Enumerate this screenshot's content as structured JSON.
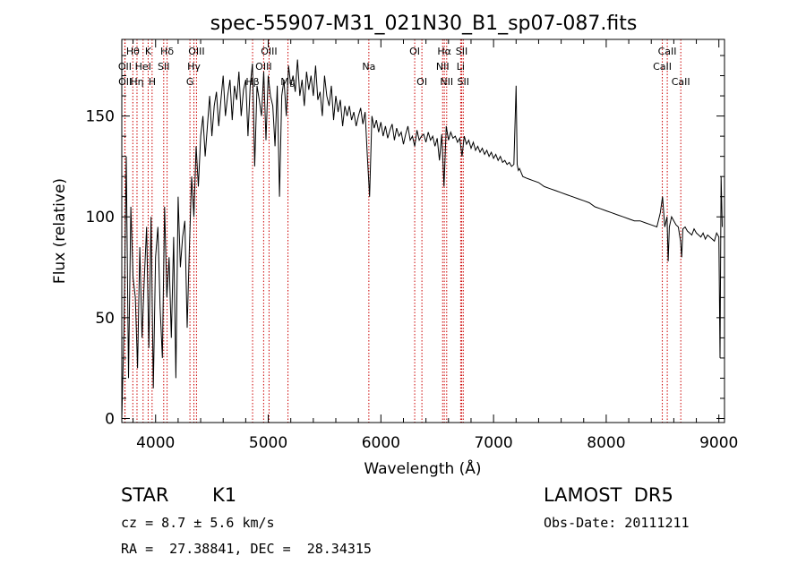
{
  "chart_data": {
    "type": "line",
    "title": "spec-55907-M31_021N30_B1_sp07-087.fits",
    "xlabel": "Wavelength (Å)",
    "ylabel": "Flux (relative)",
    "xlim": [
      3700,
      9050
    ],
    "ylim": [
      -2,
      188
    ],
    "x_ticks": [
      4000,
      5000,
      6000,
      7000,
      8000,
      9000
    ],
    "y_ticks": [
      0,
      50,
      100,
      150
    ],
    "x_tick_labels": [
      "4000",
      "5000",
      "6000",
      "7000",
      "8000",
      "9000"
    ],
    "y_tick_labels": [
      "0",
      "50",
      "100",
      "150"
    ],
    "line_color": "#000000",
    "marker_color": "#cc0000",
    "series": [
      {
        "x": [
          3700,
          3720,
          3740,
          3760,
          3780,
          3800,
          3820,
          3840,
          3860,
          3880,
          3900,
          3920,
          3940,
          3960,
          3980,
          4000,
          4020,
          4040,
          4060,
          4080,
          4100,
          4120,
          4140,
          4160,
          4180,
          4200,
          4220,
          4240,
          4260,
          4280,
          4300,
          4320,
          4340,
          4360,
          4380,
          4400,
          4420,
          4440,
          4460,
          4480,
          4500,
          4520,
          4540,
          4560,
          4580,
          4600,
          4620,
          4640,
          4660,
          4680,
          4700,
          4720,
          4740,
          4760,
          4780,
          4800,
          4820,
          4840,
          4860,
          4880,
          4900,
          4920,
          4940,
          4960,
          4980,
          5000,
          5020,
          5040,
          5060,
          5080,
          5100,
          5120,
          5140,
          5160,
          5180,
          5200,
          5220,
          5240,
          5260,
          5280,
          5300,
          5320,
          5340,
          5360,
          5380,
          5400,
          5420,
          5440,
          5460,
          5480,
          5500,
          5520,
          5540,
          5560,
          5580,
          5600,
          5620,
          5640,
          5660,
          5680,
          5700,
          5720,
          5740,
          5760,
          5780,
          5800,
          5820,
          5840,
          5860,
          5880,
          5900,
          5920,
          5940,
          5960,
          5980,
          6000,
          6020,
          6040,
          6060,
          6080,
          6100,
          6120,
          6140,
          6160,
          6180,
          6200,
          6220,
          6240,
          6260,
          6280,
          6300,
          6320,
          6340,
          6360,
          6380,
          6400,
          6420,
          6440,
          6460,
          6480,
          6500,
          6520,
          6540,
          6560,
          6580,
          6600,
          6620,
          6640,
          6660,
          6680,
          6700,
          6720,
          6740,
          6760,
          6780,
          6800,
          6820,
          6840,
          6860,
          6880,
          6900,
          6920,
          6940,
          6960,
          6980,
          7000,
          7020,
          7040,
          7060,
          7080,
          7100,
          7120,
          7140,
          7160,
          7180,
          7200,
          7210,
          7220,
          7230,
          7260,
          7300,
          7350,
          7400,
          7450,
          7500,
          7550,
          7600,
          7650,
          7700,
          7750,
          7800,
          7850,
          7900,
          7950,
          8000,
          8050,
          8100,
          8150,
          8200,
          8250,
          8300,
          8350,
          8400,
          8450,
          8480,
          8500,
          8520,
          8540,
          8550,
          8560,
          8580,
          8600,
          8620,
          8640,
          8660,
          8670,
          8680,
          8700,
          8720,
          8740,
          8760,
          8780,
          8800,
          8820,
          8840,
          8860,
          8880,
          8900,
          8920,
          8940,
          8960,
          8980,
          9000,
          9010,
          9020,
          9030
        ],
        "y": [
          0,
          45,
          130,
          20,
          105,
          70,
          60,
          25,
          85,
          40,
          70,
          95,
          35,
          100,
          15,
          80,
          95,
          55,
          30,
          105,
          60,
          80,
          40,
          90,
          20,
          110,
          75,
          90,
          98,
          45,
          85,
          120,
          100,
          135,
          115,
          140,
          150,
          130,
          145,
          160,
          140,
          155,
          162,
          145,
          158,
          170,
          150,
          160,
          168,
          148,
          165,
          158,
          172,
          150,
          163,
          168,
          140,
          165,
          176,
          125,
          165,
          158,
          150,
          172,
          138,
          170,
          160,
          155,
          135,
          165,
          110,
          160,
          168,
          150,
          175,
          165,
          170,
          162,
          178,
          160,
          168,
          155,
          172,
          163,
          170,
          160,
          175,
          158,
          162,
          150,
          170,
          160,
          155,
          165,
          148,
          160,
          152,
          158,
          145,
          155,
          150,
          155,
          148,
          152,
          145,
          150,
          154,
          146,
          152,
          130,
          110,
          150,
          144,
          148,
          142,
          147,
          140,
          145,
          139,
          143,
          146,
          138,
          144,
          140,
          142,
          136,
          141,
          145,
          138,
          140,
          135,
          143,
          138,
          140,
          141,
          137,
          142,
          138,
          140,
          135,
          139,
          128,
          141,
          115,
          145,
          138,
          142,
          139,
          140,
          137,
          139,
          130,
          140,
          136,
          138,
          134,
          137,
          133,
          135,
          132,
          134,
          131,
          133,
          130,
          132,
          129,
          131,
          128,
          130,
          127,
          128,
          126,
          127,
          125,
          126,
          165,
          126,
          123,
          124,
          120,
          119,
          118,
          117,
          115,
          114,
          113,
          112,
          111,
          110,
          109,
          108,
          107,
          105,
          104,
          103,
          102,
          101,
          100,
          99,
          98,
          98,
          97,
          96,
          95,
          102,
          110,
          95,
          100,
          78,
          95,
          100,
          98,
          96,
          95,
          88,
          80,
          94,
          95,
          93,
          92,
          91,
          94,
          92,
          91,
          90,
          92,
          89,
          91,
          90,
          89,
          88,
          92,
          90,
          30,
          120,
          95
        ]
      }
    ],
    "line_markers": [
      {
        "name": "OII",
        "wavelength": 3727,
        "label_row": 2
      },
      {
        "name": "OII",
        "wavelength": 3729,
        "label_row": 3
      },
      {
        "name": "Hθ",
        "wavelength": 3798,
        "label_row": 1
      },
      {
        "name": "Hη",
        "wavelength": 3835,
        "label_row": 3
      },
      {
        "name": "HeI",
        "wavelength": 3889,
        "label_row": 2
      },
      {
        "name": "K",
        "wavelength": 3934,
        "label_row": 1
      },
      {
        "name": "H",
        "wavelength": 3969,
        "label_row": 3
      },
      {
        "name": "Hδ",
        "wavelength": 4102,
        "label_row": 1
      },
      {
        "name": "SII",
        "wavelength": 4072,
        "label_row": 2
      },
      {
        "name": "OIII",
        "wavelength": 4363,
        "label_row": 1
      },
      {
        "name": "Hγ",
        "wavelength": 4340,
        "label_row": 2
      },
      {
        "name": "G",
        "wavelength": 4305,
        "label_row": 3
      },
      {
        "name": "Hβ",
        "wavelength": 4861,
        "label_row": 3
      },
      {
        "name": "OIII",
        "wavelength": 5007,
        "label_row": 1
      },
      {
        "name": "OIII",
        "wavelength": 4959,
        "label_row": 2
      },
      {
        "name": "Mg",
        "wavelength": 5175,
        "label_row": 3
      },
      {
        "name": "Na",
        "wavelength": 5893,
        "label_row": 2
      },
      {
        "name": "OI",
        "wavelength": 6300,
        "label_row": 1
      },
      {
        "name": "OI",
        "wavelength": 6364,
        "label_row": 3
      },
      {
        "name": "Hα",
        "wavelength": 6563,
        "label_row": 1
      },
      {
        "name": "NII",
        "wavelength": 6548,
        "label_row": 2
      },
      {
        "name": "NII",
        "wavelength": 6584,
        "label_row": 3
      },
      {
        "name": "SII",
        "wavelength": 6717,
        "label_row": 1
      },
      {
        "name": "Li",
        "wavelength": 6708,
        "label_row": 2
      },
      {
        "name": "SII",
        "wavelength": 6731,
        "label_row": 3
      },
      {
        "name": "CaII",
        "wavelength": 8542,
        "label_row": 1
      },
      {
        "name": "CaII",
        "wavelength": 8498,
        "label_row": 2
      },
      {
        "name": "CaII",
        "wavelength": 8662,
        "label_row": 3
      }
    ]
  },
  "info": {
    "object_class": "STAR",
    "subclass": "K1",
    "cz": "cz = 8.7 ± 5.6 km/s",
    "coords": "RA =  27.38841, DEC =  28.34315",
    "survey": "LAMOST  DR5",
    "obs_date": "Obs-Date: 20111211"
  }
}
